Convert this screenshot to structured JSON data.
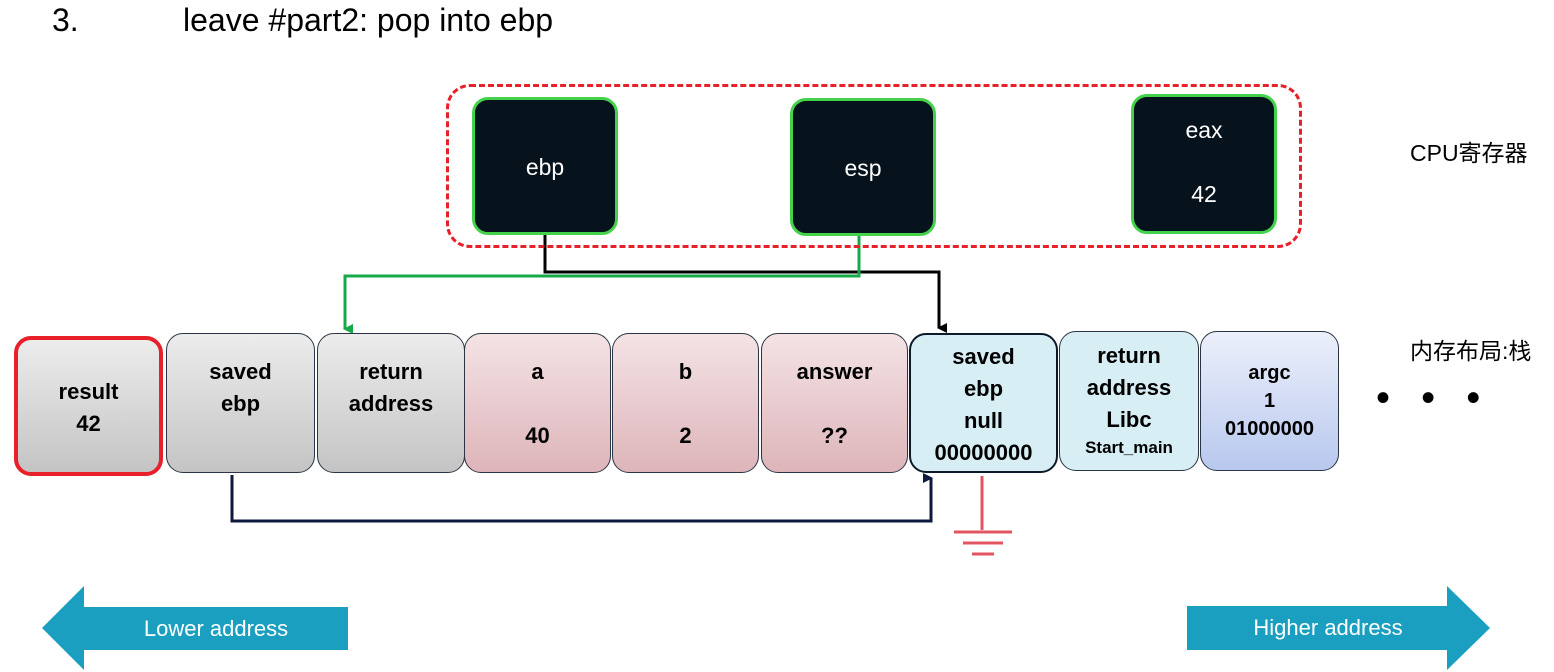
{
  "title": {
    "number": "3.",
    "text": "leave #part2: pop into ebp"
  },
  "registers": {
    "ebp": {
      "label": "ebp"
    },
    "esp": {
      "label": "esp"
    },
    "eax": {
      "label": "eax",
      "value": "42"
    }
  },
  "labels": {
    "cpu": "CPU寄存器",
    "memory": "内存布局:栈"
  },
  "stack": [
    {
      "line1": "result",
      "line2": "42"
    },
    {
      "line1": "saved",
      "line2": "ebp"
    },
    {
      "line1": "return",
      "line2": "address"
    },
    {
      "line1": "a",
      "line2": "40"
    },
    {
      "line1": "b",
      "line2": "2"
    },
    {
      "line1": "answer",
      "line2": "??"
    },
    {
      "line1": "saved",
      "line2": "ebp",
      "line3": "null",
      "line4": "00000000"
    },
    {
      "line1": "return",
      "line2": "address",
      "line3": "Libc",
      "line4": "Start_main"
    },
    {
      "line1": "argc",
      "line2": "1",
      "line3": "01000000"
    }
  ],
  "ellipsis": "• • •",
  "arrows": {
    "lower": "Lower address",
    "higher": "Higher address"
  },
  "colors": {
    "register_bg": "#06121c",
    "register_border": "#44d24a",
    "frame": "#e8202a",
    "esp_line": "#17a84a",
    "ebp_line": "#000000",
    "saved_ebp_link": "#0d1a3e",
    "ground": "#e05560",
    "address_arrow": "#1a9fc0"
  }
}
